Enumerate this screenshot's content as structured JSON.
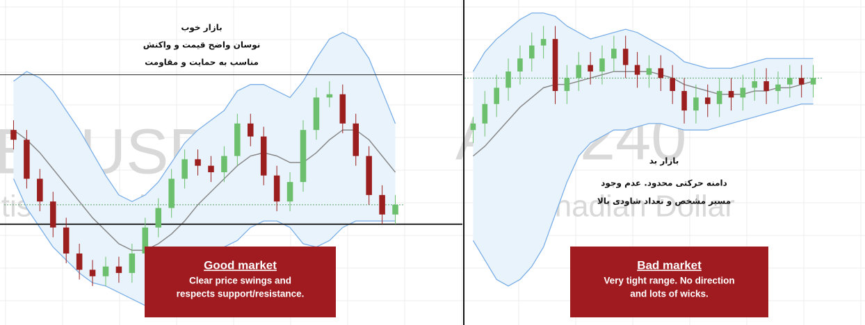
{
  "chart_data": [
    {
      "type": "candlestick",
      "watermark": [
        "BPUSD, 240",
        "itish Pound/U.S. Dollar"
      ],
      "annotations": [
        "بازار خوب",
        "نوسان واضح قیمت و واکنش",
        "مناسب به حمایت و مقاومت"
      ],
      "callout": {
        "title": "Good market",
        "lines": [
          "Clear price swings and",
          "respects support/resistance."
        ]
      },
      "ylim": [
        0,
        100
      ],
      "levels": [
        77,
        31
      ],
      "up_color": "#6cbf6c",
      "down_color": "#9c1f1f",
      "band_color": "#7aaee6",
      "mid_color": "#888888",
      "open": [
        60,
        57,
        45,
        38,
        30,
        22,
        17,
        15,
        18,
        16,
        22,
        30,
        36,
        45,
        51,
        49,
        47,
        52,
        62,
        58,
        46,
        38,
        44,
        60,
        70,
        71,
        62,
        52,
        40,
        34
      ],
      "high": [
        63,
        60,
        48,
        41,
        33,
        25,
        20,
        21,
        21,
        25,
        33,
        39,
        48,
        54,
        54,
        52,
        55,
        65,
        65,
        61,
        49,
        47,
        63,
        73,
        75,
        74,
        65,
        55,
        43,
        40
      ],
      "low": [
        54,
        42,
        35,
        27,
        19,
        14,
        12,
        12,
        13,
        13,
        19,
        27,
        33,
        42,
        46,
        44,
        44,
        49,
        55,
        43,
        35,
        35,
        41,
        57,
        67,
        59,
        49,
        37,
        31,
        31
      ],
      "close": [
        57,
        45,
        38,
        30,
        22,
        17,
        15,
        18,
        16,
        22,
        30,
        36,
        45,
        51,
        49,
        47,
        52,
        62,
        58,
        46,
        38,
        44,
        60,
        70,
        71,
        62,
        52,
        40,
        34,
        37
      ],
      "upper": [
        75,
        78,
        76,
        72,
        66,
        60,
        53,
        46,
        40,
        38,
        40,
        44,
        50,
        56,
        60,
        63,
        66,
        72,
        74,
        74,
        72,
        70,
        75,
        82,
        88,
        90,
        88,
        82,
        72,
        62
      ],
      "middle": [
        60,
        57,
        53,
        48,
        43,
        38,
        33,
        29,
        25,
        23,
        23,
        25,
        28,
        32,
        37,
        41,
        45,
        49,
        52,
        53,
        52,
        50,
        50,
        53,
        57,
        60,
        60,
        57,
        52,
        47
      ],
      "lower": [
        45,
        36,
        30,
        24,
        20,
        16,
        13,
        12,
        10,
        8,
        6,
        6,
        6,
        8,
        14,
        19,
        24,
        26,
        30,
        32,
        32,
        30,
        25,
        24,
        26,
        30,
        32,
        32,
        32,
        32
      ]
    },
    {
      "type": "candlestick",
      "watermark": [
        "AD, 240",
        "ar/Canadian Dollar"
      ],
      "annotations": [
        "بازار بد",
        "دامنه حرکتی محدود. عدم وجود",
        "مسیر مشخص و تعداد شاودی بالا"
      ],
      "callout": {
        "title": "Bad market",
        "lines": [
          "Very tight range. No direction",
          "and lots of wicks."
        ]
      },
      "ylim": [
        0,
        100
      ],
      "up_color": "#6cbf6c",
      "down_color": "#9c1f1f",
      "band_color": "#7aaee6",
      "mid_color": "#888888",
      "open": [
        60,
        62,
        68,
        73,
        78,
        82,
        86,
        88,
        72,
        76,
        80,
        78,
        82,
        85,
        80,
        77,
        79,
        76,
        72,
        66,
        70,
        68,
        72,
        70,
        73,
        75,
        72,
        74,
        76,
        74
      ],
      "high": [
        64,
        72,
        77,
        82,
        86,
        90,
        92,
        92,
        80,
        84,
        84,
        86,
        89,
        89,
        84,
        83,
        83,
        80,
        76,
        74,
        74,
        76,
        76,
        77,
        79,
        79,
        78,
        80,
        80,
        80
      ],
      "low": [
        56,
        58,
        64,
        69,
        74,
        78,
        82,
        68,
        68,
        72,
        74,
        74,
        78,
        76,
        73,
        73,
        72,
        68,
        62,
        62,
        64,
        64,
        66,
        66,
        69,
        68,
        68,
        70,
        70,
        70
      ],
      "close": [
        62,
        68,
        73,
        78,
        82,
        86,
        88,
        72,
        76,
        80,
        78,
        82,
        85,
        80,
        77,
        79,
        76,
        72,
        66,
        70,
        68,
        72,
        70,
        73,
        75,
        72,
        74,
        76,
        74,
        76
      ],
      "upper": [
        78,
        84,
        88,
        91,
        94,
        96,
        96,
        95,
        92,
        90,
        88,
        89,
        90,
        91,
        90,
        88,
        86,
        84,
        81,
        80,
        79,
        79,
        79,
        80,
        81,
        82,
        82,
        82,
        82,
        82
      ],
      "middle": [
        52,
        55,
        59,
        63,
        67,
        70,
        73,
        74,
        74,
        75,
        76,
        77,
        78,
        78,
        78,
        78,
        77,
        76,
        74,
        73,
        72,
        71,
        71,
        71,
        72,
        72,
        73,
        73,
        74,
        75
      ],
      "lower": [
        26,
        20,
        14,
        12,
        14,
        18,
        24,
        34,
        44,
        52,
        56,
        58,
        60,
        60,
        61,
        62,
        62,
        61,
        60,
        60,
        60,
        61,
        62,
        63,
        64,
        65,
        66,
        67,
        68,
        68
      ]
    }
  ]
}
